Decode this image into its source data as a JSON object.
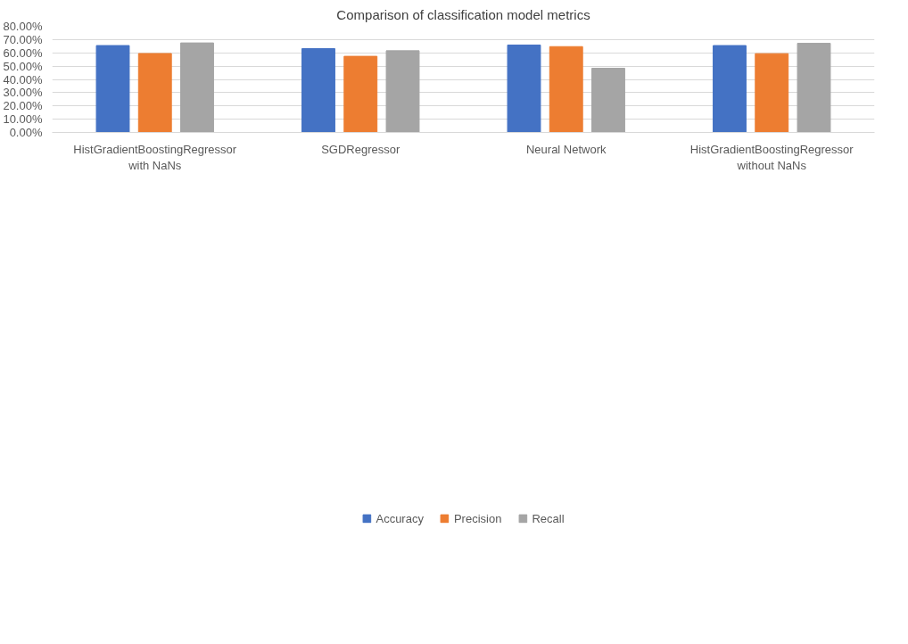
{
  "chart_data": {
    "type": "bar",
    "title": "Comparison of classification model metrics",
    "categories": [
      "HistGradientBoostingRegressor\nwith NaNs",
      "SGDRegressor",
      "Neural Network",
      "HistGradientBoostingRegressor\nwithout NaNs"
    ],
    "series": [
      {
        "name": "Accuracy",
        "color": "#4472c4",
        "values": [
          65.5,
          63.2,
          65.9,
          65.5
        ]
      },
      {
        "name": "Precision",
        "color": "#ed7d31",
        "values": [
          59.5,
          57.4,
          64.7,
          59.4
        ]
      },
      {
        "name": "Recall",
        "color": "#a5a5a5",
        "values": [
          67.5,
          61.6,
          48.4,
          67.2
        ]
      }
    ],
    "ylim": [
      0,
      80
    ],
    "yticks": [
      {
        "value": 0,
        "label": "0.00%"
      },
      {
        "value": 10,
        "label": "10.00%"
      },
      {
        "value": 20,
        "label": "20.00%"
      },
      {
        "value": 30,
        "label": "30.00%"
      },
      {
        "value": 40,
        "label": "40.00%"
      },
      {
        "value": 50,
        "label": "50.00%"
      },
      {
        "value": 60,
        "label": "60.00%"
      },
      {
        "value": 70,
        "label": "70.00%"
      },
      {
        "value": 80,
        "label": "80.00%"
      }
    ],
    "grid": "y",
    "legend": "bottom"
  }
}
